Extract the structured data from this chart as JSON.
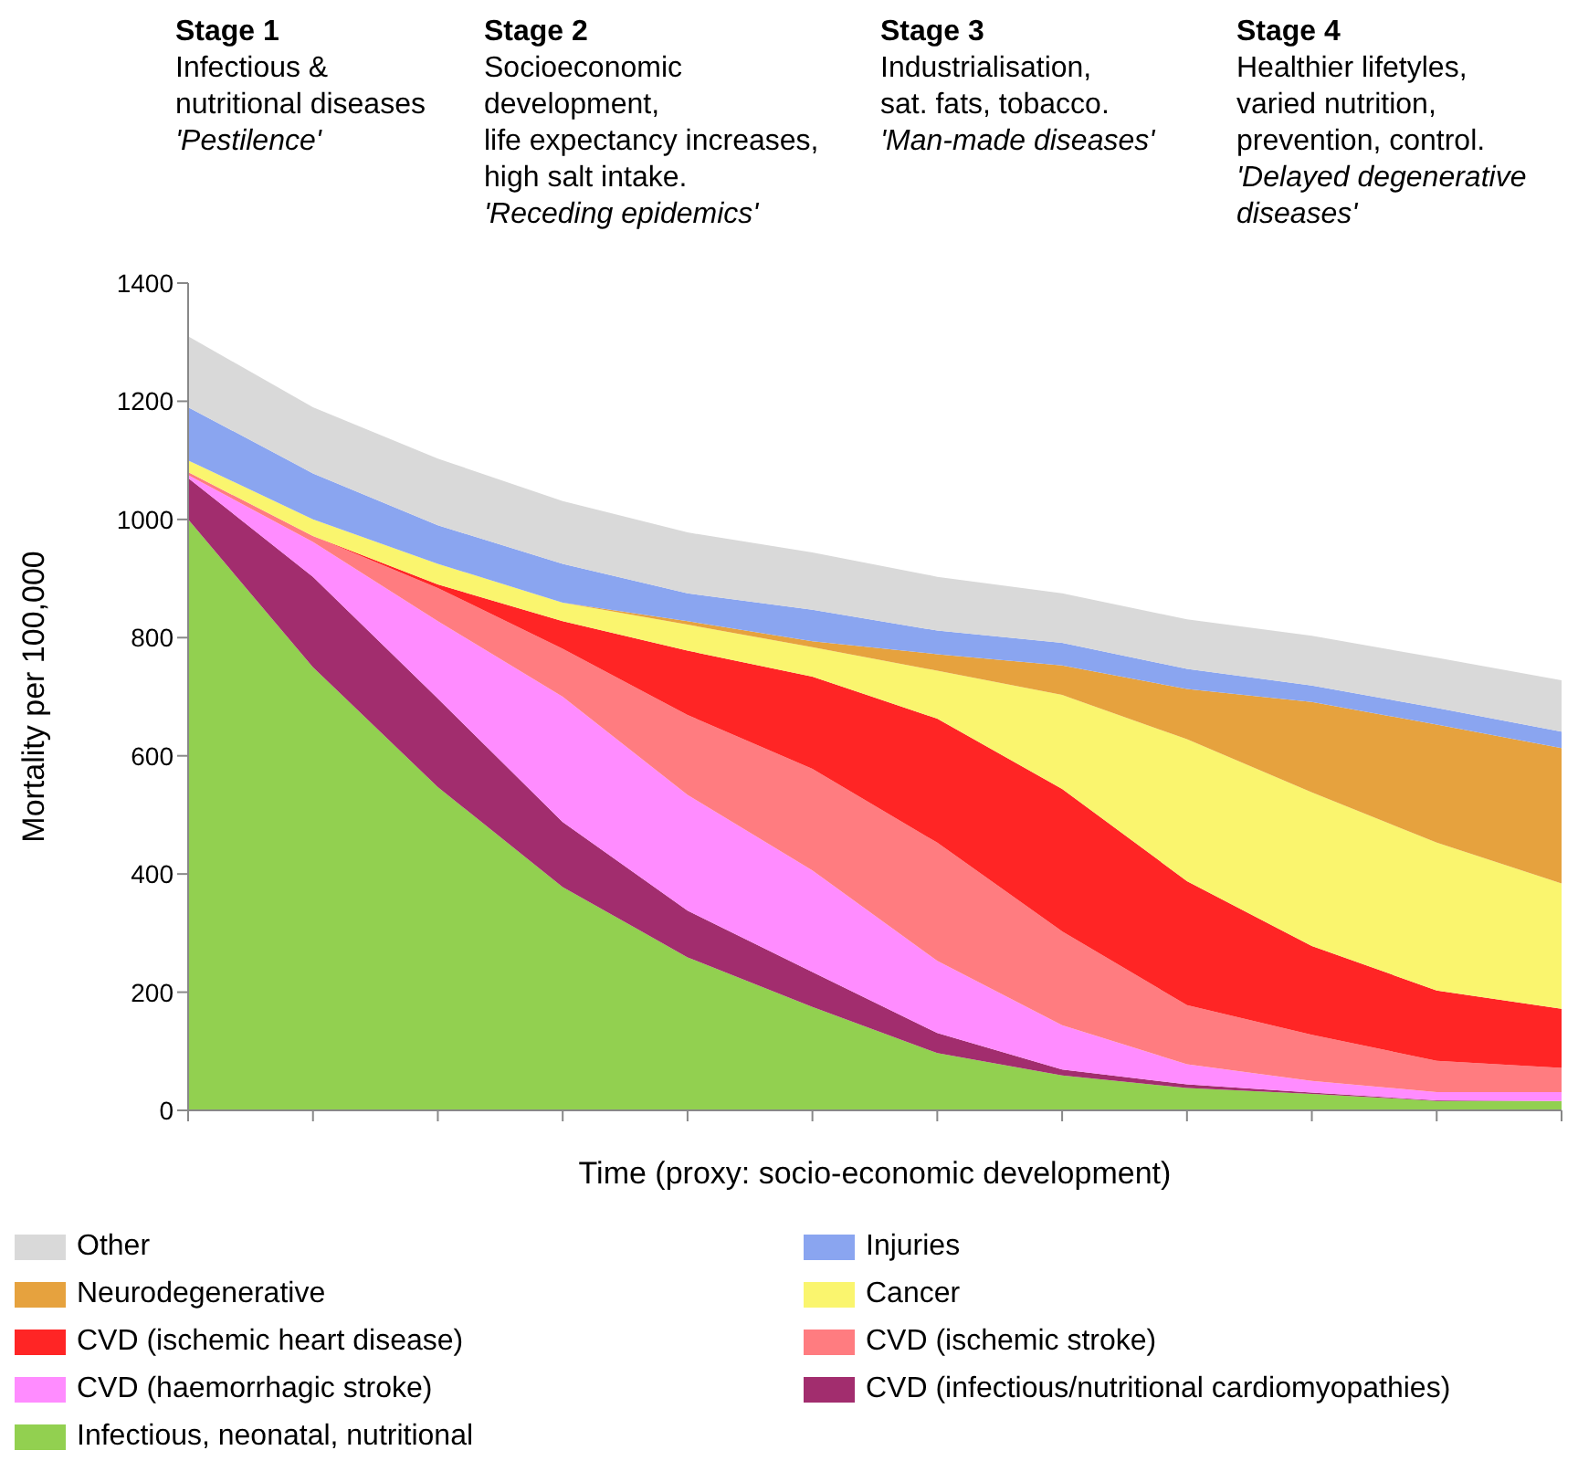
{
  "chart_data": {
    "type": "area",
    "stacked": true,
    "xlabel": "Time (proxy: socio-economic development)",
    "ylabel": "Mortality  per 100,000",
    "annotations": [
      "Stage 1\nInfectious &\nnutritional diseases\n'Pestilence'",
      "Stage 2\nSocioeconomic\ndevelopment,\nlife expectancy increases,\nhigh salt intake.\n'Receding epidemics'",
      "Stage 3\nIndustrialisation,\nsat. fats, tobacco.\n'Man-made diseases'",
      "Stage 4\nHealthier lifetyles,\nvaried nutrition,\nprevention, control.\n'Delayed degenerative\ndiseases'"
    ],
    "categories": [
      null,
      null,
      null,
      null,
      null,
      null,
      null,
      null,
      null,
      null,
      null,
      null
    ],
    "series": [
      {
        "name": "Infectious, neonatal, nutritional",
        "color": "#92d050",
        "values": [
          1000,
          750,
          547,
          378,
          259,
          175,
          97,
          59,
          38,
          28,
          16,
          16
        ]
      },
      {
        "name": "CVD (infectious/nutritional cardiomyopathies)",
        "color": "#a22d6e",
        "values": [
          70,
          153,
          150,
          110,
          79,
          59,
          34,
          10,
          6,
          2,
          1,
          0
        ]
      },
      {
        "name": "CVD (haemorrhagic stroke)",
        "color": "#ff8cff",
        "values": [
          5,
          59,
          131,
          212,
          196,
          172,
          122,
          75,
          34,
          20,
          14,
          15
        ]
      },
      {
        "name": "CVD (ischemic stroke)",
        "color": "#ff7c80",
        "values": [
          5,
          10,
          56,
          81,
          135,
          172,
          200,
          159,
          100,
          78,
          53,
          41
        ]
      },
      {
        "name": "CVD (ischemic heart disease)",
        "color": "#ff2525",
        "values": [
          0,
          0,
          6,
          47,
          109,
          156,
          210,
          241,
          210,
          150,
          119,
          100
        ]
      },
      {
        "name": "Cancer",
        "color": "#faf56e",
        "values": [
          20,
          28,
          35,
          31,
          44,
          50,
          81,
          159,
          240,
          260,
          250,
          212
        ]
      },
      {
        "name": "Neurodegenerative",
        "color": "#e6a23e",
        "values": [
          0,
          0,
          0,
          0,
          6,
          10,
          28,
          50,
          85,
          153,
          200,
          229
        ]
      },
      {
        "name": "Injuries",
        "color": "#8aa5f0",
        "values": [
          90,
          78,
          65,
          66,
          47,
          53,
          40,
          38,
          34,
          28,
          28,
          28
        ]
      },
      {
        "name": "Other",
        "color": "#d9d9d9",
        "values": [
          120,
          112,
          113,
          106,
          103,
          97,
          91,
          84,
          84,
          84,
          85,
          87
        ]
      }
    ],
    "ylim": [
      0,
      1400
    ],
    "yticks": [
      0,
      200,
      400,
      600,
      800,
      1000,
      1200,
      1400
    ],
    "grid": false,
    "legend": "bottom"
  }
}
